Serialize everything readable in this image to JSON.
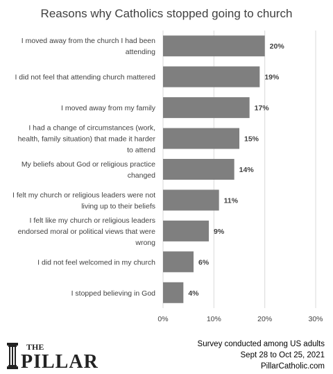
{
  "chart_data": {
    "type": "bar",
    "orientation": "horizontal",
    "title": "Reasons why Catholics stopped going to church",
    "categories": [
      "I moved away from the church I had been attending",
      "I did not feel that attending church mattered",
      "I moved away from my family",
      "I had a change of circumstances (work, health, family situation) that made it harder to attend",
      "My beliefs about God or religious practice changed",
      "I felt my church or religious leaders were not living up to their beliefs",
      "I felt like my church or religious leaders endorsed moral or political views that were wrong",
      "I did not feel welcomed in my church",
      "I stopped believing in God"
    ],
    "category_lines": [
      [
        "I moved away from the church I had been",
        "attending"
      ],
      [
        "I did not feel that attending church mattered"
      ],
      [
        "I moved away from my family"
      ],
      [
        "I had a change of circumstances (work,",
        "health, family situation) that made it harder",
        "to attend"
      ],
      [
        "My beliefs about God or religious practice",
        "changed"
      ],
      [
        "I felt my church or religious leaders were not",
        "living up to their beliefs"
      ],
      [
        "I felt like my church or religious leaders",
        "endorsed moral or political views that were",
        "wrong"
      ],
      [
        "I did not feel welcomed in my church"
      ],
      [
        "I stopped believing in God"
      ]
    ],
    "values": [
      20,
      19,
      17,
      15,
      14,
      11,
      9,
      6,
      4
    ],
    "value_labels": [
      "20%",
      "19%",
      "17%",
      "15%",
      "14%",
      "11%",
      "9%",
      "6%",
      "4%"
    ],
    "xlim": [
      0,
      30
    ],
    "xticks": [
      0,
      10,
      20,
      30
    ],
    "xtick_labels": [
      "0%",
      "10%",
      "20%",
      "30%"
    ],
    "grid": true,
    "bar_color": "#7f7f7f",
    "grid_color": "#d9d9d9"
  },
  "logo": {
    "text_top": "THE",
    "text_main": "PILLAR"
  },
  "footer": {
    "line1": "Survey conducted among US adults",
    "line2": "Sept 28 to Oct 25, 2021",
    "line3": "PillarCatholic.com"
  }
}
